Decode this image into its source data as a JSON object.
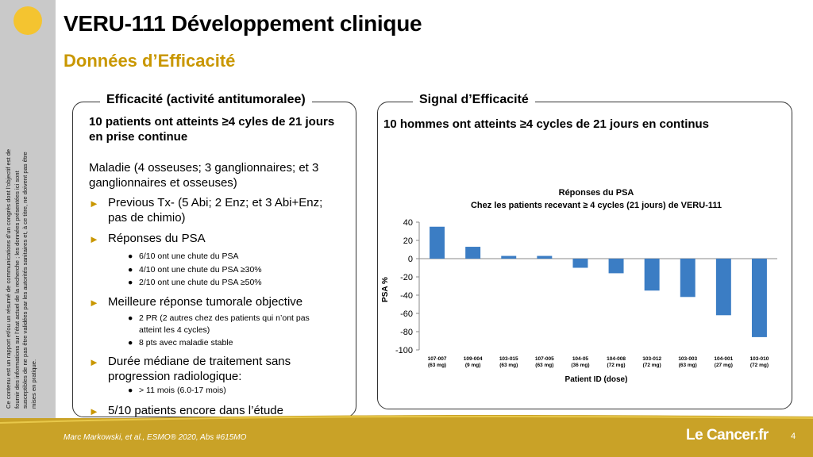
{
  "slide": {
    "title": "VERU-111 Développement clinique",
    "subtitle": "Données d’Efficacité",
    "disclaimer": "Ce contenu est un rapport et/ou un résumé de communications d’un congrès dont l’objectif est de fournir des informations sur l’état actuel de la recherche ; les données présentées ici sont susceptibles de ne pas être validées par les autorités sanitaires et, à ce titre, ne doivent pas être mises en pratique.",
    "citation": "Marc Markowski, et al., ESMO® 2020, Abs #615MO",
    "logo": "Le Cancer.fr",
    "page_number": "4",
    "accent_color": "#c99700",
    "footer_color": "#c9a227"
  },
  "left_box": {
    "title": "Efficacité (activité antitumoralee)",
    "headline_1": "10 patients ont atteints ≥4 cyles de 21 jours",
    "headline_2": "en prise continue",
    "maladie_1": "Maladie (4 osseuses; 3 ganglionnaires; et 3",
    "maladie_2": "ganglionnaires et osseuses)",
    "bullets": [
      {
        "lines": [
          "Previous Tx- (5 Abi; 2 Enz; et 3 Abi+Enz;",
          "pas de chimio)"
        ]
      },
      {
        "lines": [
          "Réponses du PSA"
        ]
      },
      {
        "lines": [
          "Meilleure réponse tumorale objective"
        ]
      },
      {
        "lines": [
          "Durée médiane de traitement sans",
          "progression radiologique:"
        ]
      },
      {
        "lines": [
          "5/10 patients encore dans l’étude"
        ]
      }
    ],
    "psa_sub": [
      "6/10 ont une chute du PSA",
      "4/10 ont une chute du PSA ≥30%",
      "2/10 ont une chute du PSA ≥50%"
    ],
    "orr_sub": [
      "2  PR  (2 autres chez des patients qui n’ont pas",
      "atteint les 4 cycles)",
      "8 pts avec maladie stable"
    ],
    "pfs_sub": [
      "> 11 mois (6.0-17 mois)"
    ]
  },
  "right_box": {
    "title": "Signal d’Efficacité",
    "headline": "10 hommes ont atteints ≥4 cycles de 21 jours en continus"
  },
  "chart_data": {
    "type": "bar",
    "title": "Réponses du PSA",
    "subtitle": "Chez les patients recevant ≥ 4 cycles (21 jours) de VERU-111",
    "xlabel": "Patient ID (dose)",
    "ylabel": "PSA %",
    "ylim": [
      -100,
      40
    ],
    "yticks": [
      40,
      20,
      0,
      -20,
      -40,
      -60,
      -80,
      -100
    ],
    "categories": [
      {
        "id": "107-007",
        "dose": "(63 mg)"
      },
      {
        "id": "109-004",
        "dose": "(9 mg)"
      },
      {
        "id": "103-015",
        "dose": "(63 mg)"
      },
      {
        "id": "107-005",
        "dose": "(63 mg)"
      },
      {
        "id": "104-05",
        "dose": "(36 mg)"
      },
      {
        "id": "104-008",
        "dose": "(72 mg)"
      },
      {
        "id": "103-012",
        "dose": "(72 mg)"
      },
      {
        "id": "103-003",
        "dose": "(63 mg)"
      },
      {
        "id": "104-001",
        "dose": "(27 mg)"
      },
      {
        "id": "103-010",
        "dose": "(72 mg)"
      }
    ],
    "values": [
      35,
      13,
      3,
      3,
      -10,
      -16,
      -35,
      -42,
      -62,
      -86
    ],
    "bar_color": "#3b7dc4",
    "grid": false
  }
}
